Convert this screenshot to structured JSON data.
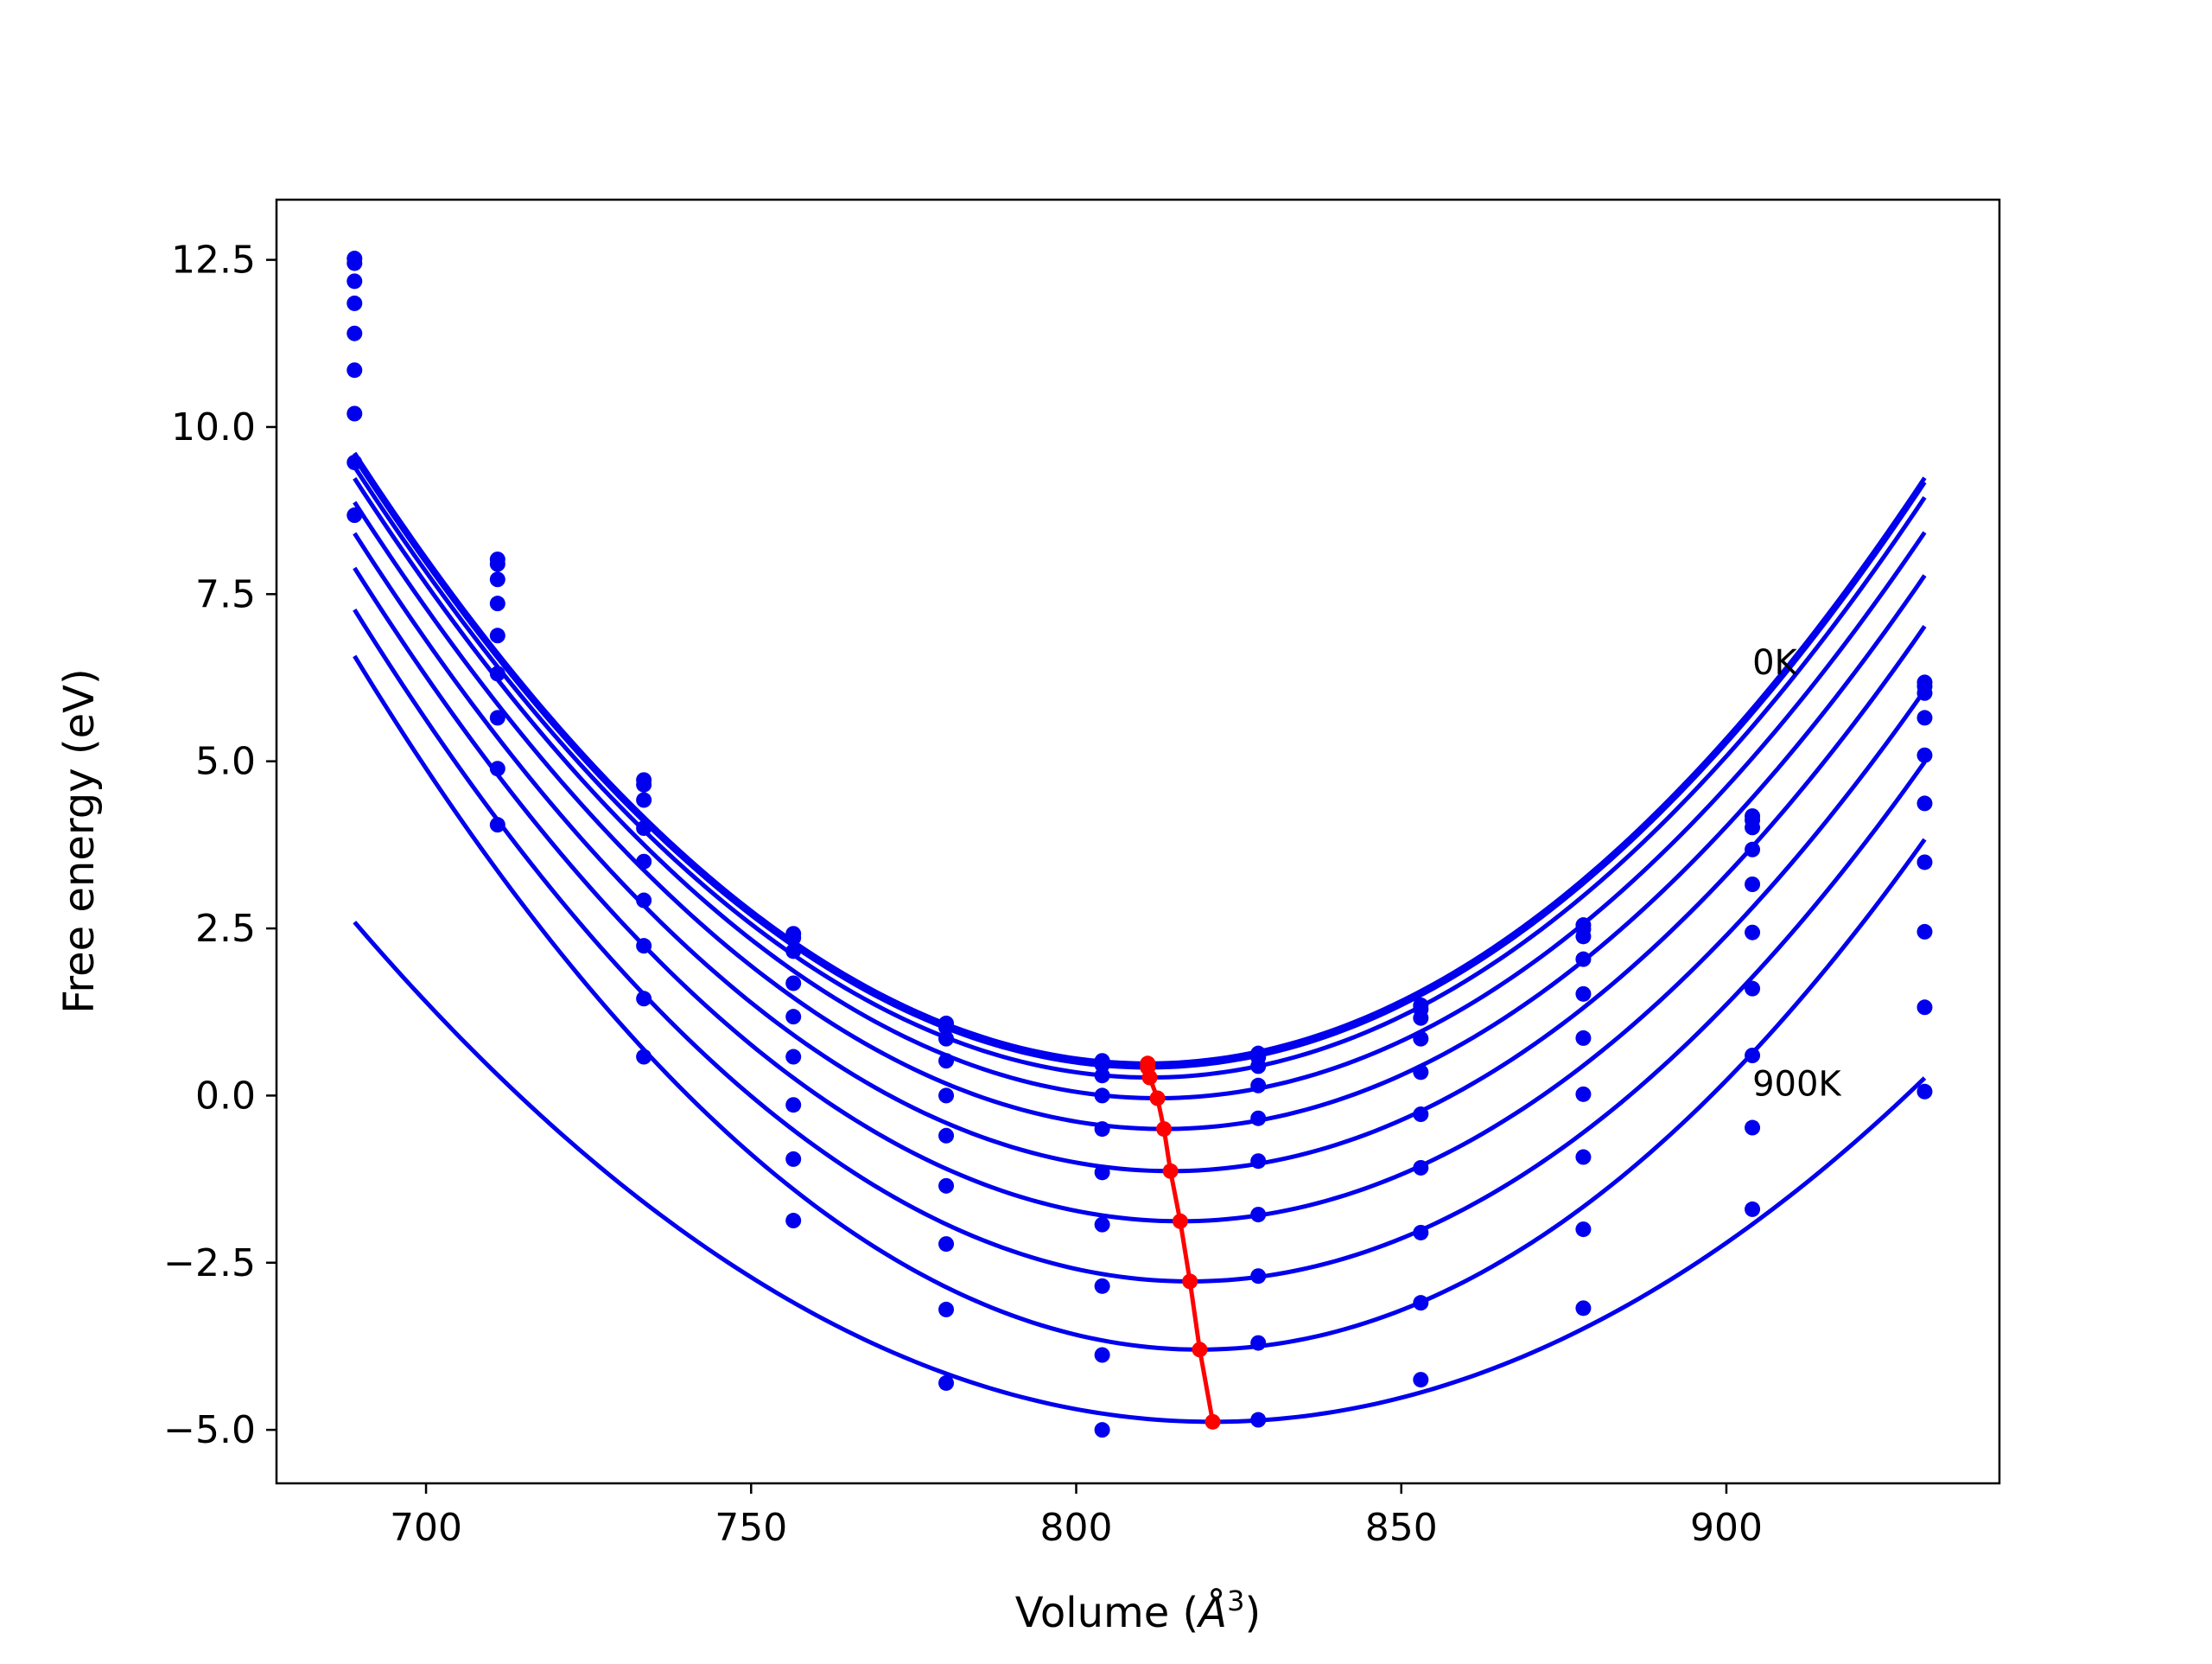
{
  "chart_data": {
    "type": "line",
    "title": "",
    "xlabel": "Volume (",
    "xlabel_unit": "Å",
    "xlabel_exp": "3",
    "xlabel_close": ")",
    "ylabel": "Free energy (eV)",
    "xlim": [
      677,
      942
    ],
    "ylim": [
      -5.8,
      13.4
    ],
    "grid": false,
    "legend": "none",
    "x_ticks": [
      700,
      750,
      800,
      850,
      900
    ],
    "x_tick_labels": [
      "700",
      "750",
      "800",
      "850",
      "900"
    ],
    "y_ticks": [
      -5.0,
      -2.5,
      0.0,
      2.5,
      5.0,
      7.5,
      10.0,
      12.5
    ],
    "y_tick_labels": [
      "−5.0",
      "−2.5",
      "0.0",
      "2.5",
      "5.0",
      "7.5",
      "10.0",
      "12.5"
    ],
    "annotations": [
      {
        "text": "0K",
        "x": 904,
        "y": 6.3
      },
      {
        "text": "900K",
        "x": 904,
        "y": 0.0
      }
    ],
    "volumes": [
      689,
      711,
      733.5,
      756.5,
      780,
      804,
      828,
      853,
      878,
      904,
      930.5
    ],
    "series_color": "#0000ee",
    "min_color": "#ff0000",
    "series": [
      {
        "values": [
          12.52,
          8.02,
          4.72,
          2.42,
          1.08,
          0.52,
          0.63,
          1.35,
          2.55,
          4.18,
          6.18
        ],
        "min_v": 811.0,
        "min_e": 0.48
      },
      {
        "values": [
          12.45,
          7.95,
          4.65,
          2.36,
          1.02,
          0.46,
          0.57,
          1.29,
          2.49,
          4.12,
          6.12
        ],
        "min_v": 811.0,
        "min_e": 0.42
      },
      {
        "values": [
          12.18,
          7.72,
          4.42,
          2.16,
          0.85,
          0.3,
          0.44,
          1.16,
          2.38,
          4.01,
          6.02
        ],
        "min_v": 811.3,
        "min_e": 0.27
      },
      {
        "values": [
          11.85,
          7.36,
          4.0,
          1.68,
          0.52,
          0.0,
          0.15,
          0.85,
          2.04,
          3.68,
          5.65
        ],
        "min_v": 812.5,
        "min_e": -0.04
      },
      {
        "values": [
          11.4,
          6.88,
          3.5,
          1.18,
          0.0,
          -0.5,
          -0.34,
          0.35,
          1.52,
          3.16,
          5.09
        ],
        "min_v": 813.5,
        "min_e": -0.5
      },
      {
        "values": [
          10.85,
          6.31,
          2.92,
          0.58,
          -0.6,
          -1.15,
          -0.98,
          -0.28,
          0.86,
          2.44,
          4.37
        ],
        "min_v": 814.5,
        "min_e": -1.13
      },
      {
        "values": [
          10.2,
          5.65,
          2.24,
          -0.14,
          -1.35,
          -1.93,
          -1.78,
          -1.08,
          0.02,
          1.6,
          3.49
        ],
        "min_v": 816.0,
        "min_e": -1.88
      },
      {
        "values": [
          9.47,
          4.89,
          1.45,
          -0.95,
          -2.22,
          -2.85,
          -2.7,
          -2.05,
          -0.92,
          0.6,
          2.45
        ],
        "min_v": 817.5,
        "min_e": -2.78
      },
      {
        "values": [
          8.68,
          4.05,
          0.58,
          -1.87,
          -3.2,
          -3.88,
          -3.7,
          -3.1,
          -2.0,
          -0.48,
          1.32
        ],
        "min_v": 819.0,
        "min_e": -3.8
      },
      {
        "values": [
          null,
          null,
          null,
          null,
          -4.3,
          -5.0,
          -4.85,
          -4.25,
          -3.18,
          -1.7,
          0.06
        ],
        "min_v": 821.0,
        "min_e": -4.88
      }
    ]
  }
}
